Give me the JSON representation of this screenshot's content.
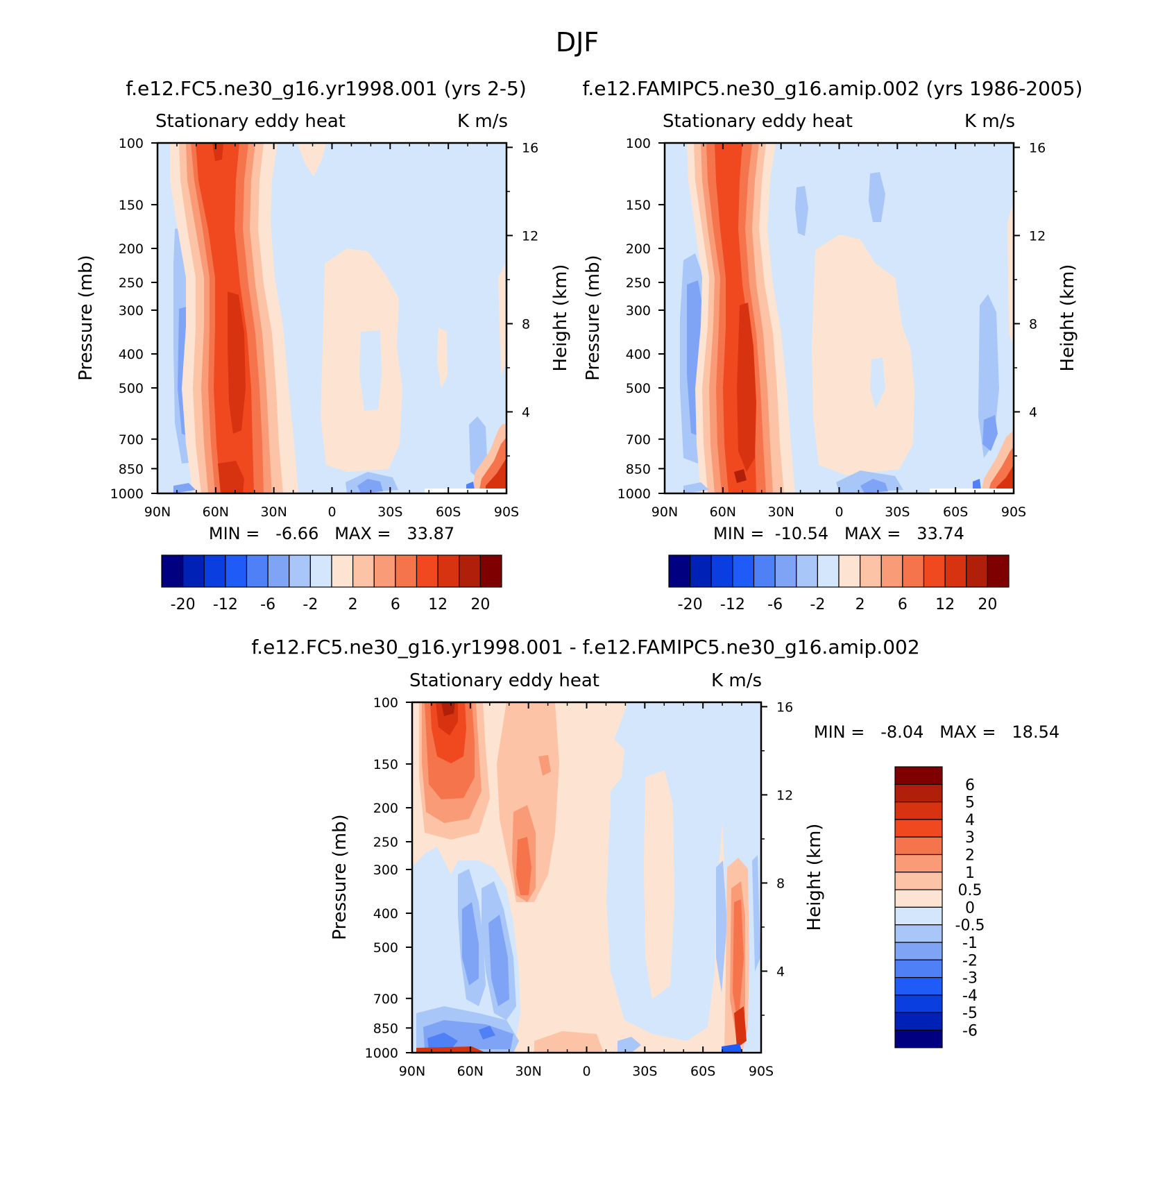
{
  "figure_title": "DJF",
  "panels": [
    {
      "id": "p1",
      "title": "f.e12.FC5.ne30_g16.yr1998.001 (yrs 2-5)",
      "left_label": "Stationary eddy heat",
      "right_label": "K m/s",
      "ylabel_left": "Pressure (mb)",
      "ylabel_right": "Height (km)",
      "stats": "MIN =   -6.66   MAX =   33.87"
    },
    {
      "id": "p2",
      "title": "f.e12.FAMIPC5.ne30_g16.amip.002 (yrs 1986-2005)",
      "left_label": "Stationary eddy heat",
      "right_label": "K m/s",
      "ylabel_left": "Pressure (mb)",
      "ylabel_right": "Height (km)",
      "stats": "MIN =  -10.54   MAX =   33.74"
    },
    {
      "id": "p3",
      "title": "f.e12.FC5.ne30_g16.yr1998.001 - f.e12.FAMIPC5.ne30_g16.amip.002",
      "left_label": "Stationary eddy heat",
      "right_label": "K m/s",
      "ylabel_left": "Pressure (mb)",
      "ylabel_right": "Height (km)",
      "stats": "MIN =   -8.04   MAX =   18.54"
    }
  ],
  "axes": {
    "x_ticks": [
      "90N",
      "60N",
      "30N",
      "0",
      "30S",
      "60S",
      "90S"
    ],
    "y_ticks": [
      "100",
      "150",
      "200",
      "250",
      "300",
      "400",
      "500",
      "700",
      "850",
      "1000"
    ],
    "y_ticks_right": [
      "16",
      "12",
      "8",
      "4"
    ]
  },
  "colorbars": {
    "main": {
      "colors": [
        "#000080",
        "#0021b6",
        "#0b3ee0",
        "#1f5cf7",
        "#4f80f5",
        "#7fa4f5",
        "#a8c6f7",
        "#d4e6fb",
        "#fde4d2",
        "#fcc3a7",
        "#f99b76",
        "#f5744b",
        "#f0481f",
        "#d83310",
        "#b01f0a",
        "#7f0000"
      ],
      "labels": [
        "-20",
        "-12",
        "-6",
        "-2",
        "2",
        "6",
        "12",
        "20"
      ]
    },
    "diff": {
      "colors": [
        "#7f0000",
        "#b01f0a",
        "#d83310",
        "#f0481f",
        "#f5744b",
        "#f99b76",
        "#fcc3a7",
        "#fde4d2",
        "#d4e6fb",
        "#a8c6f7",
        "#7fa4f5",
        "#4f80f5",
        "#1f5cf7",
        "#0b3ee0",
        "#0021b6",
        "#000080"
      ],
      "labels": [
        "6",
        "5",
        "4",
        "3",
        "2",
        "1",
        "0.5",
        "0",
        "-0.5",
        "-1",
        "-2",
        "-3",
        "-4",
        "-5",
        "-6"
      ]
    }
  },
  "chart_data": [
    {
      "type": "heatmap",
      "title": "f.e12.FC5.ne30_g16.yr1998.001 (yrs 2-5)",
      "variable": "Stationary eddy heat",
      "units": "K m/s",
      "season": "DJF",
      "x": [
        "90N",
        "60N",
        "30N",
        "0",
        "30S",
        "60S",
        "90S"
      ],
      "y_pressure_mb": [
        100,
        150,
        200,
        250,
        300,
        400,
        500,
        700,
        850,
        1000
      ],
      "min": -6.66,
      "max": 33.87,
      "features": [
        {
          "feature": "main heat-flux band",
          "lat_range": [
            "70N",
            "35N"
          ],
          "pressure_range_mb": [
            100,
            1000
          ],
          "value_range": [
            6,
            12
          ]
        },
        {
          "feature": "core maximum",
          "lat_range": [
            "55N",
            "45N"
          ],
          "pressure_range_mb": [
            300,
            700
          ],
          "value_range": [
            12,
            20
          ]
        },
        {
          "feature": "negative band",
          "lat_range": [
            "90N",
            "65N"
          ],
          "pressure_range_mb": [
            300,
            700
          ],
          "value_range": [
            -6,
            -2
          ]
        },
        {
          "feature": "positive southern band",
          "lat_range": [
            "5N",
            "35S"
          ],
          "pressure_range_mb": [
            200,
            900
          ],
          "value_range": [
            0,
            2
          ]
        },
        {
          "feature": "surface maximum",
          "lat_range": [
            "80S",
            "90S"
          ],
          "pressure_range_mb": [
            800,
            1000
          ],
          "value_range": [
            6,
            20
          ]
        }
      ]
    },
    {
      "type": "heatmap",
      "title": "f.e12.FAMIPC5.ne30_g16.amip.002 (yrs 1986-2005)",
      "variable": "Stationary eddy heat",
      "units": "K m/s",
      "season": "DJF",
      "x": [
        "90N",
        "60N",
        "30N",
        "0",
        "30S",
        "60S",
        "90S"
      ],
      "y_pressure_mb": [
        100,
        150,
        200,
        250,
        300,
        400,
        500,
        700,
        850,
        1000
      ],
      "min": -10.54,
      "max": 33.74,
      "features": [
        {
          "feature": "main heat-flux band",
          "lat_range": [
            "70N",
            "35N"
          ],
          "pressure_range_mb": [
            100,
            1000
          ],
          "value_range": [
            6,
            12
          ]
        },
        {
          "feature": "core maximum",
          "lat_range": [
            "55N",
            "45N"
          ],
          "pressure_range_mb": [
            300,
            950
          ],
          "value_range": [
            12,
            20
          ]
        },
        {
          "feature": "negative band",
          "lat_range": [
            "90N",
            "70N"
          ],
          "pressure_range_mb": [
            250,
            700
          ],
          "value_range": [
            -6,
            -2
          ]
        },
        {
          "feature": "positive southern band",
          "lat_range": [
            "0",
            "45S"
          ],
          "pressure_range_mb": [
            200,
            900
          ],
          "value_range": [
            0,
            2
          ]
        },
        {
          "feature": "surface maximum",
          "lat_range": [
            "80S",
            "90S"
          ],
          "pressure_range_mb": [
            800,
            1000
          ],
          "value_range": [
            6,
            20
          ]
        }
      ]
    },
    {
      "type": "heatmap",
      "title": "f.e12.FC5.ne30_g16.yr1998.001 - f.e12.FAMIPC5.ne30_g16.amip.002",
      "variable": "Stationary eddy heat",
      "units": "K m/s",
      "season": "DJF",
      "x": [
        "90N",
        "60N",
        "30N",
        "0",
        "30S",
        "60S",
        "90S"
      ],
      "y_pressure_mb": [
        100,
        150,
        200,
        250,
        300,
        400,
        500,
        700,
        850,
        1000
      ],
      "min": -8.04,
      "max": 18.54,
      "features": [
        {
          "feature": "upper positive lobe",
          "lat_range": [
            "85N",
            "55N"
          ],
          "pressure_range_mb": [
            100,
            300
          ],
          "value_range": [
            2,
            6
          ]
        },
        {
          "feature": "lower negative lobe",
          "lat_range": [
            "75N",
            "40N"
          ],
          "pressure_range_mb": [
            400,
            1000
          ],
          "value_range": [
            -3,
            -1
          ]
        },
        {
          "feature": "subtropical positive",
          "lat_range": [
            "35N",
            "25N"
          ],
          "pressure_range_mb": [
            250,
            600
          ],
          "value_range": [
            1,
            3
          ]
        },
        {
          "feature": "southern polar positive",
          "lat_range": [
            "80S",
            "90S"
          ],
          "pressure_range_mb": [
            250,
            1000
          ],
          "value_range": [
            1,
            4
          ]
        }
      ]
    }
  ]
}
